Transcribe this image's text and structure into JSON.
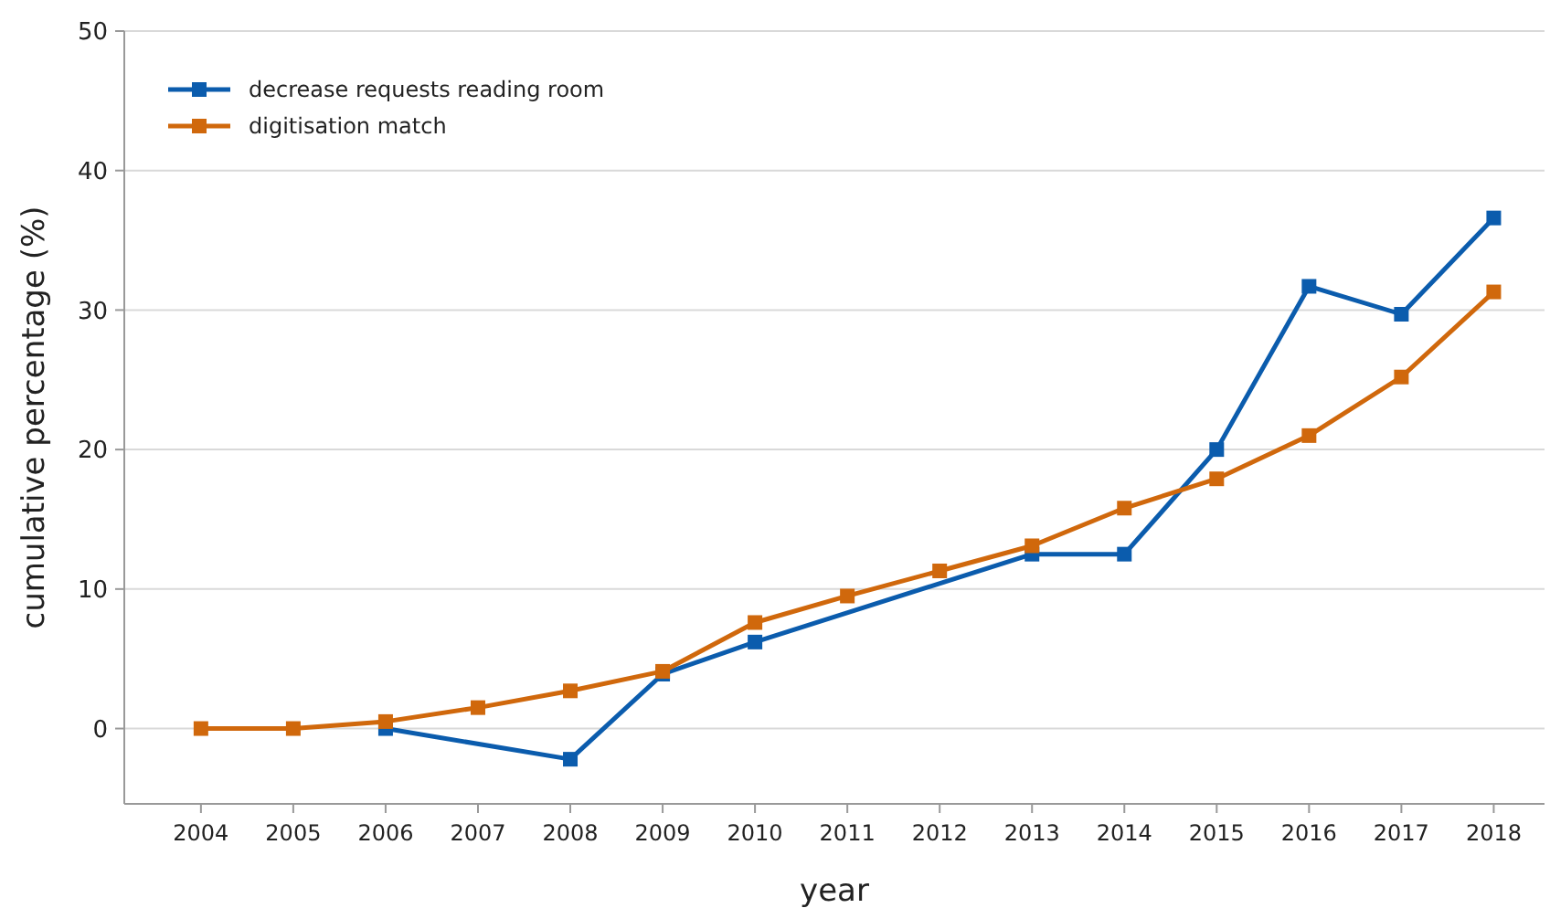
{
  "chart_data": {
    "type": "line",
    "xlabel": "year",
    "ylabel": "cumulative percentage (%)",
    "x": [
      2004,
      2005,
      2006,
      2007,
      2008,
      2009,
      2010,
      2011,
      2012,
      2013,
      2014,
      2015,
      2016,
      2017,
      2018
    ],
    "series": [
      {
        "name": "decrease requests reading room",
        "color": "#0b5cad",
        "x": [
          2006,
          2008,
          2009,
          2010,
          2013,
          2014,
          2015,
          2016,
          2017,
          2018
        ],
        "values": [
          0,
          -2.2,
          3.9,
          6.2,
          12.5,
          12.5,
          20,
          31.7,
          29.7,
          36.6
        ]
      },
      {
        "name": "digitisation match",
        "color": "#d0680c",
        "values": [
          0,
          0,
          0.5,
          1.5,
          2.7,
          4.1,
          7.6,
          9.5,
          11.3,
          13.1,
          15.8,
          17.9,
          21,
          25.2,
          31.3
        ]
      }
    ],
    "xlim": [
      2003.17,
      2018.55
    ],
    "xticks": [
      2004,
      2005,
      2006,
      2007,
      2008,
      2009,
      2010,
      2011,
      2012,
      2013,
      2014,
      2015,
      2016,
      2017,
      2018
    ],
    "ylim": [
      -5.4,
      50
    ],
    "yticks": [
      0,
      10,
      20,
      30,
      40,
      50
    ],
    "grid": "y",
    "legend": "top left",
    "marker": "square",
    "line_style": "solid"
  }
}
